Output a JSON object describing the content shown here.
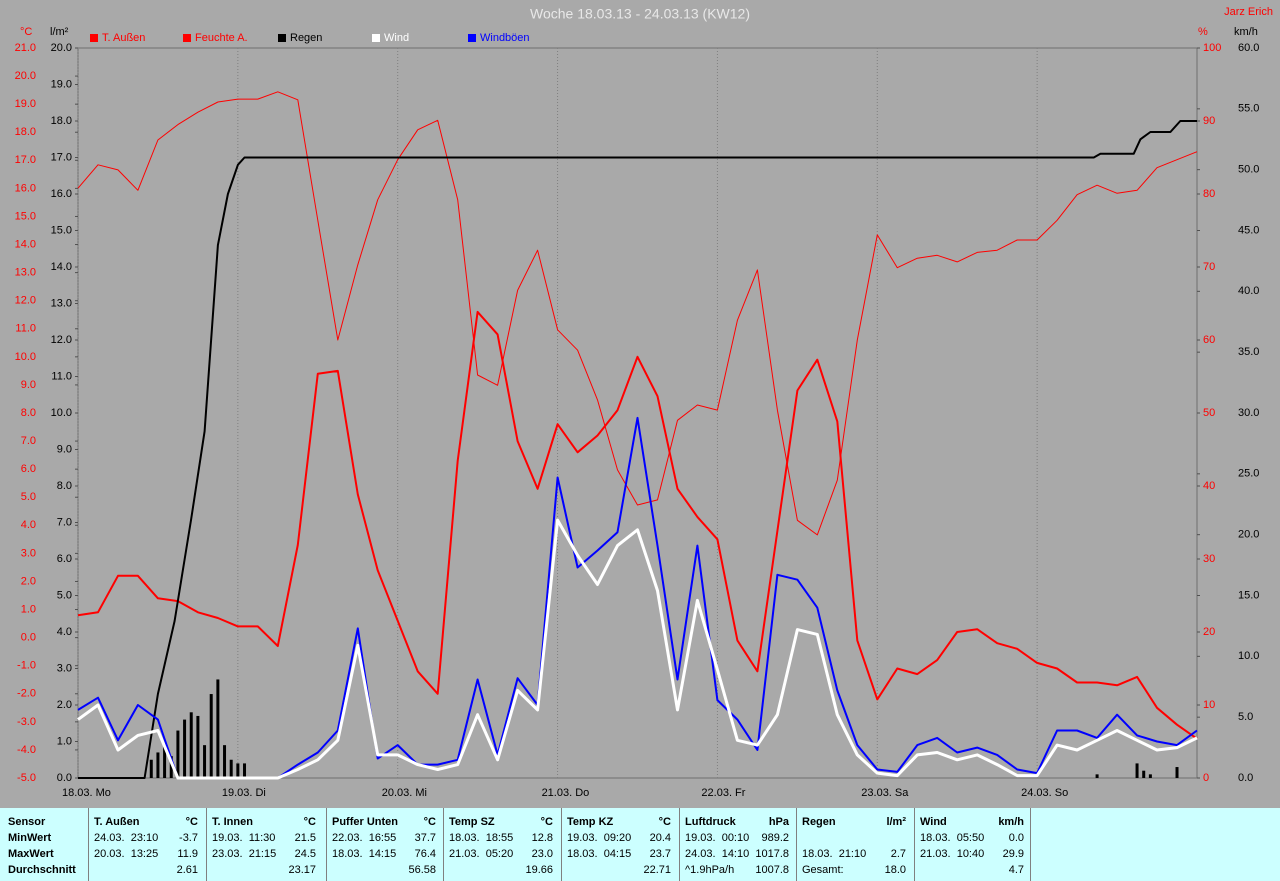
{
  "chart_data": {
    "type": "line",
    "title": "Woche 18.03.13 - 24.03.13 (KW12)",
    "author": "Jarz Erich",
    "ylabel": "°C",
    "y2label": "%",
    "y3label": "l/m²",
    "y4label": "km/h",
    "xlim": [
      0,
      168
    ],
    "xticks": [
      {
        "value": 0,
        "label": "18.03. Mo"
      },
      {
        "value": 24,
        "label": "19.03. Di"
      },
      {
        "value": 48,
        "label": "20.03. Mi"
      },
      {
        "value": 72,
        "label": "21.03. Do"
      },
      {
        "value": 96,
        "label": "22.03. Fr"
      },
      {
        "value": 120,
        "label": "23.03. Sa"
      },
      {
        "value": 144,
        "label": "24.03. So"
      }
    ],
    "grid": true,
    "ylim": [
      -5,
      21
    ],
    "yticks": [
      {
        "value": -5,
        "label": "-5.0"
      },
      {
        "value": -4,
        "label": "-4.0"
      },
      {
        "value": -3,
        "label": "-3.0"
      },
      {
        "value": -2,
        "label": "-2.0"
      },
      {
        "value": -1,
        "label": "-1.0"
      },
      {
        "value": 0,
        "label": "0.0"
      },
      {
        "value": 1,
        "label": "1.0"
      },
      {
        "value": 2,
        "label": "2.0"
      },
      {
        "value": 3,
        "label": "3.0"
      },
      {
        "value": 4,
        "label": "4.0"
      },
      {
        "value": 5,
        "label": "5.0"
      },
      {
        "value": 6,
        "label": "6.0"
      },
      {
        "value": 7,
        "label": "7.0"
      },
      {
        "value": 8,
        "label": "8.0"
      },
      {
        "value": 9,
        "label": "9.0"
      },
      {
        "value": 10,
        "label": "10.0"
      },
      {
        "value": 11,
        "label": "11.0"
      },
      {
        "value": 12,
        "label": "12.0"
      },
      {
        "value": 13,
        "label": "13.0"
      },
      {
        "value": 14,
        "label": "14.0"
      },
      {
        "value": 15,
        "label": "15.0"
      },
      {
        "value": 16,
        "label": "16.0"
      },
      {
        "value": 17,
        "label": "17.0"
      },
      {
        "value": 18,
        "label": "18.0"
      },
      {
        "value": 19,
        "label": "19.0"
      },
      {
        "value": 20,
        "label": "20.0"
      },
      {
        "value": 21,
        "label": "21.0"
      }
    ],
    "y2lim": [
      0,
      100
    ],
    "y2ticks": [
      0,
      10,
      20,
      30,
      40,
      50,
      60,
      70,
      80,
      90,
      100
    ],
    "y3lim": [
      0,
      20
    ],
    "y3ticks": [
      {
        "value": 0,
        "label": "0.0"
      },
      {
        "value": 1,
        "label": "1.0"
      },
      {
        "value": 2,
        "label": "2.0"
      },
      {
        "value": 3,
        "label": "3.0"
      },
      {
        "value": 4,
        "label": "4.0"
      },
      {
        "value": 5,
        "label": "5.0"
      },
      {
        "value": 6,
        "label": "6.0"
      },
      {
        "value": 7,
        "label": "7.0"
      },
      {
        "value": 8,
        "label": "8.0"
      },
      {
        "value": 9,
        "label": "9.0"
      },
      {
        "value": 10,
        "label": "10.0"
      },
      {
        "value": 11,
        "label": "11.0"
      },
      {
        "value": 12,
        "label": "12.0"
      },
      {
        "value": 13,
        "label": "13.0"
      },
      {
        "value": 14,
        "label": "14.0"
      },
      {
        "value": 15,
        "label": "15.0"
      },
      {
        "value": 16,
        "label": "16.0"
      },
      {
        "value": 17,
        "label": "17.0"
      },
      {
        "value": 18,
        "label": "18.0"
      },
      {
        "value": 19,
        "label": "19.0"
      },
      {
        "value": 20,
        "label": "20.0"
      }
    ],
    "y4lim": [
      0,
      60
    ],
    "y4ticks": [
      {
        "value": 0,
        "label": "0.0"
      },
      {
        "value": 5,
        "label": "5.0"
      },
      {
        "value": 10,
        "label": "10.0"
      },
      {
        "value": 15,
        "label": "15.0"
      },
      {
        "value": 20,
        "label": "20.0"
      },
      {
        "value": 25,
        "label": "25.0"
      },
      {
        "value": 30,
        "label": "30.0"
      },
      {
        "value": 35,
        "label": "35.0"
      },
      {
        "value": 40,
        "label": "40.0"
      },
      {
        "value": 45,
        "label": "45.0"
      },
      {
        "value": 50,
        "label": "50.0"
      },
      {
        "value": 55,
        "label": "55.0"
      },
      {
        "value": 60,
        "label": "60.0"
      }
    ],
    "x": [
      0,
      3,
      6,
      9,
      12,
      15,
      18,
      21,
      24,
      27,
      30,
      33,
      36,
      39,
      42,
      45,
      48,
      51,
      54,
      57,
      60,
      63,
      66,
      69,
      72,
      75,
      78,
      81,
      84,
      87,
      90,
      93,
      96,
      99,
      102,
      105,
      108,
      111,
      114,
      117,
      120,
      123,
      126,
      129,
      132,
      135,
      138,
      141,
      144,
      147,
      150,
      153,
      156,
      159,
      162,
      165,
      168
    ],
    "series": [
      {
        "name": "T. Außen",
        "color": "#ff0000",
        "axis": "y",
        "width": 2,
        "values": [
          0.8,
          0.9,
          2.2,
          2.2,
          1.4,
          1.3,
          0.9,
          0.7,
          0.4,
          0.4,
          -0.3,
          3.3,
          9.4,
          9.5,
          5.1,
          2.4,
          0.6,
          -1.2,
          -2.0,
          6.3,
          11.6,
          10.8,
          7.0,
          5.3,
          7.6,
          6.6,
          7.2,
          8.1,
          10.0,
          8.6,
          5.3,
          4.3,
          3.5,
          -0.1,
          -1.2,
          3.8,
          8.8,
          9.9,
          7.7,
          -0.1,
          -2.2,
          -1.1,
          -1.3,
          -0.8,
          0.2,
          0.3,
          -0.2,
          -0.4,
          -0.9,
          -1.1,
          -1.6,
          -1.6,
          -1.7,
          -1.4,
          -2.5,
          -3.1,
          -3.6
        ]
      },
      {
        "name": "Feuchte A.",
        "color": "#ff0000",
        "axis": "y2",
        "width": 1,
        "values": [
          80.8,
          84,
          83.3,
          80.5,
          87.4,
          89.5,
          91.2,
          92.6,
          93,
          93,
          94,
          92.9,
          76.4,
          60,
          70.3,
          79.2,
          84.7,
          88.8,
          90.1,
          79.2,
          55.2,
          53.8,
          66.8,
          72.3,
          61.4,
          58.6,
          51.8,
          42.2,
          37.4,
          38.1,
          49,
          51.1,
          50.4,
          62.7,
          69.6,
          50.4,
          35.3,
          33.3,
          40.8,
          60,
          74.4,
          69.9,
          71.2,
          71.6,
          70.7,
          72,
          72.3,
          73.7,
          73.7,
          76.4,
          79.9,
          81.2,
          80.1,
          80.5,
          83.6,
          84.7,
          85.8
        ]
      },
      {
        "name": "Regen",
        "color": "#000000",
        "axis": "y3",
        "width": 2,
        "x": [
          0,
          10,
          12,
          14.5,
          17,
          19,
          21,
          22.5,
          24,
          25,
          152.5,
          153.5,
          158.5,
          159.5,
          161,
          164,
          165.5,
          168
        ],
        "values": [
          0,
          0,
          2.3,
          4.3,
          7.1,
          9.5,
          14.6,
          16,
          16.8,
          17,
          17,
          17.1,
          17.1,
          17.5,
          17.7,
          17.7,
          18,
          18
        ],
        "bars": {
          "x": [
            11,
            12,
            13,
            14,
            15,
            16,
            17,
            18,
            19,
            20,
            21,
            22,
            23,
            24,
            25,
            153,
            159,
            160,
            161,
            165
          ],
          "values": [
            0.5,
            0.7,
            0.9,
            0.6,
            1.3,
            1.6,
            1.8,
            1.7,
            0.9,
            2.3,
            2.7,
            0.9,
            0.5,
            0.4,
            0.4,
            0.1,
            0.4,
            0.2,
            0.1,
            0.3
          ]
        }
      },
      {
        "name": "Wind",
        "color": "#ffffff",
        "axis": "y4",
        "width": 3,
        "values": [
          4.8,
          6.0,
          2.3,
          3.5,
          3.9,
          0,
          0,
          0,
          0,
          0,
          0,
          0.7,
          1.5,
          3.1,
          10.9,
          1.9,
          1.9,
          1.1,
          0.7,
          1.1,
          5.2,
          1.5,
          7.2,
          5.6,
          21.2,
          18.3,
          15.9,
          19.1,
          20.4,
          15.4,
          5.6,
          14.6,
          8.9,
          3.1,
          2.7,
          5.2,
          12.2,
          11.8,
          5.2,
          1.9,
          0.4,
          0.2,
          1.9,
          2.1,
          1.5,
          1.9,
          1.1,
          0.2,
          0.2,
          2.7,
          2.3,
          3.1,
          3.9,
          3.1,
          2.3,
          2.5,
          3.3
        ]
      },
      {
        "name": "Windböen",
        "color": "#0000ff",
        "axis": "y4",
        "width": 2,
        "values": [
          5.6,
          6.6,
          3.1,
          6.0,
          4.8,
          0,
          0,
          0,
          0,
          0,
          0,
          1.1,
          2.1,
          3.9,
          12.3,
          1.6,
          2.7,
          1.1,
          1.1,
          1.5,
          8.1,
          1.9,
          8.2,
          6.0,
          24.7,
          17.3,
          18.7,
          20.2,
          29.6,
          19.1,
          8.1,
          19.1,
          6.4,
          4.8,
          2.3,
          16.7,
          16.3,
          14.0,
          7.2,
          2.7,
          0.7,
          0.5,
          2.7,
          3.3,
          2.1,
          2.5,
          1.9,
          0.7,
          0.4,
          3.9,
          3.9,
          3.3,
          5.2,
          3.5,
          3.0,
          2.7,
          3.9
        ]
      }
    ]
  },
  "table": {
    "header": "Sensor",
    "rows": [
      "MinWert",
      "MaxWert",
      "Durchschnitt"
    ],
    "groups": [
      {
        "name": "T. Außen",
        "unit": "°C",
        "cells": [
          {
            "time": "24.03.  23:10",
            "value": "-3.7"
          },
          {
            "time": "20.03.  13:25",
            "value": "11.9"
          },
          {
            "value": "2.61"
          }
        ]
      },
      {
        "name": "T. Innen",
        "unit": "°C",
        "cells": [
          {
            "time": "19.03.  11:30",
            "value": "21.5"
          },
          {
            "time": "23.03.  21:15",
            "value": "24.5"
          },
          {
            "value": "23.17"
          }
        ]
      },
      {
        "name": "Puffer Unten",
        "unit": "°C",
        "cells": [
          {
            "time": "22.03.  16:55",
            "value": "37.7"
          },
          {
            "time": "18.03.  14:15",
            "value": "76.4"
          },
          {
            "value": "56.58"
          }
        ]
      },
      {
        "name": "Temp SZ",
        "unit": "°C",
        "cells": [
          {
            "time": "18.03.  18:55",
            "value": "12.8"
          },
          {
            "time": "21.03.  05:20",
            "value": "23.0"
          },
          {
            "value": "19.66"
          }
        ]
      },
      {
        "name": "Temp KZ",
        "unit": "°C",
        "cells": [
          {
            "time": "19.03.  09:20",
            "value": "20.4"
          },
          {
            "time": "18.03.  04:15",
            "value": "23.7"
          },
          {
            "value": "22.71"
          }
        ]
      },
      {
        "name": "Luftdruck",
        "unit": "hPa",
        "cells": [
          {
            "time": "19.03.  00:10",
            "value": "989.2"
          },
          {
            "time": "24.03.  14:10",
            "value": "1017.8"
          },
          {
            "time": "^1.9hPa/h",
            "value": "1007.8"
          }
        ]
      },
      {
        "name": "Regen",
        "unit": "l/m²",
        "cells": [
          null,
          {
            "time": "18.03.  21:10",
            "value": "2.7"
          },
          {
            "time": "Gesamt:",
            "value": "18.0"
          }
        ]
      },
      {
        "name": "Wind",
        "unit": "km/h",
        "cells": [
          {
            "time": "18.03.  05:50",
            "value": "0.0"
          },
          {
            "time": "21.03.  10:40",
            "value": "29.9"
          },
          {
            "value": "4.7"
          }
        ]
      }
    ]
  }
}
